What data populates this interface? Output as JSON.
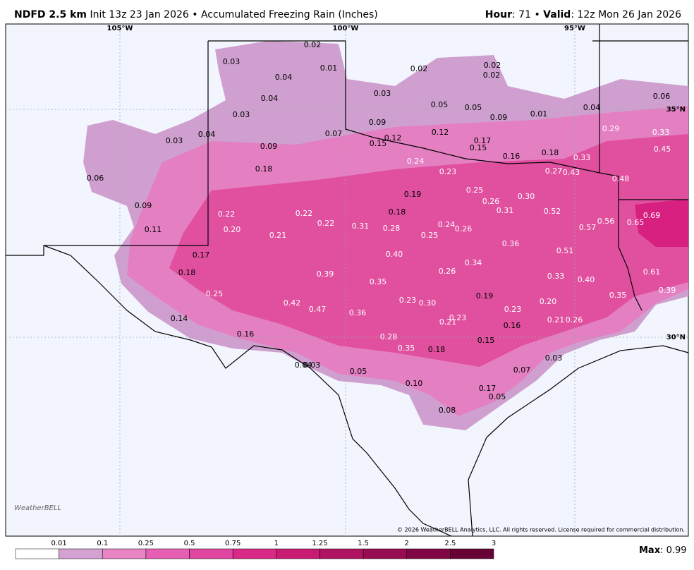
{
  "header": {
    "product": "NDFD 2.5 km",
    "init": "Init 13z 23 Jan 2026 • Accumulated Freezing Rain (Inches)",
    "hour_label": "Hour",
    "hour_value": ": 71 •",
    "valid_label": "Valid",
    "valid_value": ": 12z Mon 26 Jan 2026"
  },
  "grid_labels": [
    "105°W",
    "100°W",
    "95°W",
    "35°N",
    "30°N"
  ],
  "map": {
    "labels": [
      "0.02",
      "0.03",
      "0.01",
      "0.04",
      "0.02",
      "0.02",
      "0.02",
      "0.03",
      "0.04",
      "0.05",
      "0.05",
      "0.09",
      "0.01",
      "0.04",
      "0.06",
      "0.03",
      "0.09",
      "0.07",
      "0.04",
      "0.03",
      "0.12",
      "0.12",
      "0.17",
      "0.15",
      "0.15",
      "0.29",
      "0.33",
      "0.09",
      "0.16",
      "0.18",
      "0.45",
      "0.24",
      "0.33",
      "0.18",
      "0.23",
      "0.27",
      "0.43",
      "0.48",
      "0.06",
      "0.25",
      "0.19",
      "0.30",
      "0.26",
      "0.09",
      "0.18",
      "0.31",
      "0.52",
      "0.22",
      "0.22",
      "0.69",
      "0.22",
      "0.56",
      "0.65",
      "0.11",
      "0.20",
      "0.31",
      "0.28",
      "0.24",
      "0.26",
      "0.57",
      "0.21",
      "0.25",
      "0.36",
      "0.51",
      "0.17",
      "0.40",
      "0.34",
      "0.18",
      "0.39",
      "0.26",
      "0.61",
      "0.33",
      "0.40",
      "0.35",
      "0.39",
      "0.25",
      "0.35",
      "0.19",
      "0.42",
      "0.23",
      "0.30",
      "0.20",
      "0.47",
      "0.36",
      "0.23",
      "0.14",
      "0.23",
      "0.21",
      "0.21",
      "0.26",
      "0.16",
      "0.16",
      "0.28",
      "0.15",
      "0.35",
      "0.18",
      "0.04",
      "0.03",
      "0.03",
      "0.05",
      "0.07",
      "0.10",
      "0.17",
      "0.05",
      "0.08"
    ]
  },
  "colorbar": {
    "ticks": [
      0.01,
      0.1,
      0.25,
      0.5,
      0.75,
      1,
      1.25,
      1.5,
      2,
      2.5,
      3
    ],
    "colors": [
      "#ffffff",
      "#d3a2d3",
      "#e884c4",
      "#e65fb3",
      "#e0469f",
      "#d92a88",
      "#c91a74",
      "#b01262",
      "#980c52",
      "#800744",
      "#680236"
    ]
  },
  "max_label": "Max",
  "max_value": ": 0.99",
  "logo": "WeatherBELL",
  "copyright": "© 2026 WeatherBELL Analytics, LLC. All rights reserved. License required for commercial distribution."
}
